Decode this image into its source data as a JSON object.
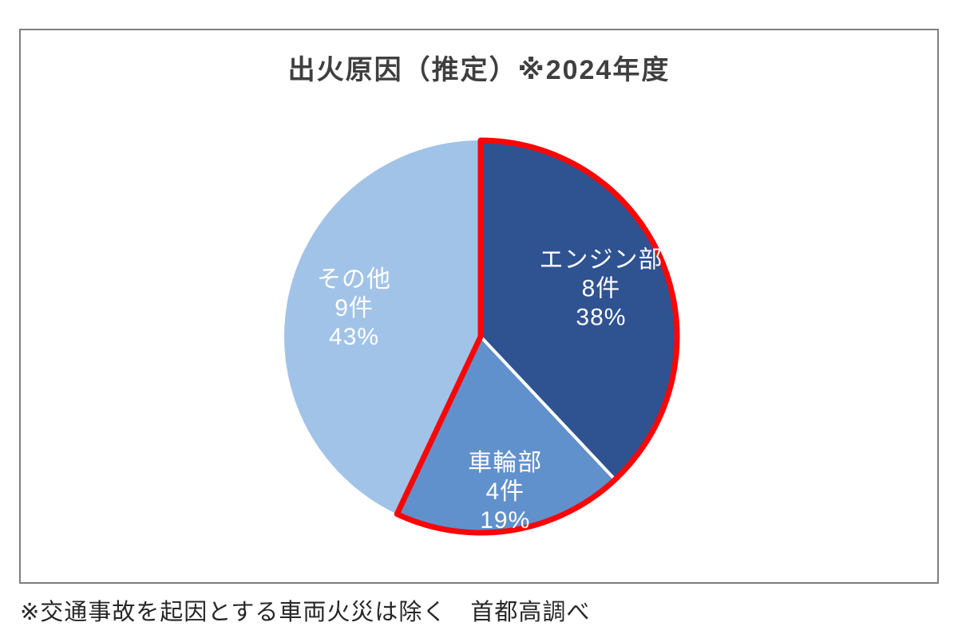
{
  "footnote": "※交通事故を起因とする車両火災は除く　首都高調べ",
  "chart_data": {
    "type": "pie",
    "title": "出火原因（推定）※2024年度",
    "start_angle_deg": 0,
    "direction": "clockwise",
    "total_count": 21,
    "slices": [
      {
        "label": "エンジン部",
        "count": 8,
        "count_label": "8件",
        "percent": 38,
        "percent_label": "38%",
        "color": "#2F5291",
        "outlined": true
      },
      {
        "label": "車輪部",
        "count": 4,
        "count_label": "4件",
        "percent": 19,
        "percent_label": "19%",
        "color": "#6191CC",
        "outlined": true
      },
      {
        "label": "その他",
        "count": 9,
        "count_label": "9件",
        "percent": 43,
        "percent_label": "43%",
        "color": "#A2C3E8",
        "outlined": false
      }
    ],
    "outline_color": "#FB0606",
    "divider_color": "#FFFFFF",
    "label_color": "#FFFFFF",
    "legend": "none",
    "grid": "off"
  }
}
